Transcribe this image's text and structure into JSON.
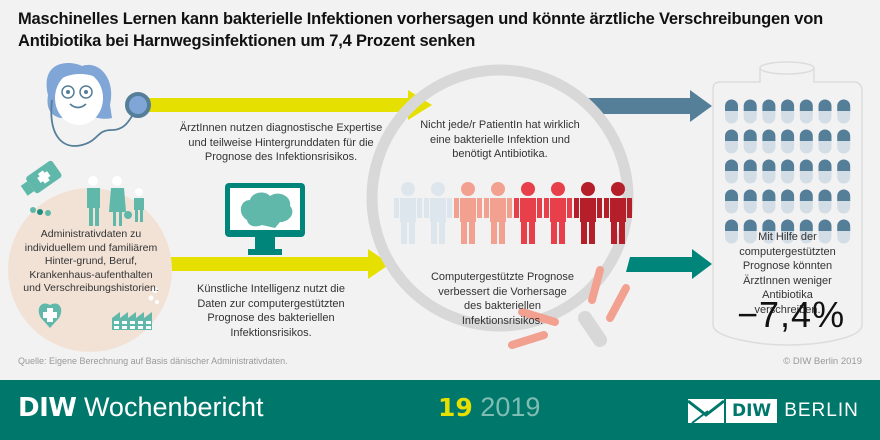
{
  "title": "Maschinelles Lernen kann bakterielle Infektionen vorhersagen und könnte ärztliche Verschreibungen von Antibiotika bei Harnwegsinfektionen um 7,4 Prozent senken",
  "steps": {
    "doctor": {
      "icon": "doctor-with-stethoscope-icon",
      "text": "ÄrztInnen nutzen diagnostische Expertise und teilweise Hintergrunddaten für die Prognose des Infektionsrisikos."
    },
    "admin_data": {
      "icon": "family-and-records-icon",
      "text": "Administrativdaten zu individuellem und familiärem Hinter-grund, Beruf, Krankenhaus-aufenthalten und Verschreibungshistorien."
    },
    "ai": {
      "icon": "brain-monitor-icon",
      "text": "Künstliche Intelligenz nutzt die Daten zur computergestützten Prognose des bakteriellen Infektionsrisikos."
    },
    "patients": {
      "icon": "magnifier-patients-icon",
      "text_top": "Nicht jede/r PatientIn hat wirklich eine bakterielle Infektion und benötigt Antibiotika.",
      "text_bottom": "Computergestützte Prognose verbessert die Vorhersage des bakteriellen Infektionsrisikos.",
      "figure_colors": [
        "#dde6ec",
        "#dde6ec",
        "#f2a090",
        "#f2a090",
        "#e8404a",
        "#e8404a",
        "#b51f2a",
        "#b51f2a"
      ]
    },
    "result": {
      "icon": "pill-bottle-icon",
      "text": "Mit Hilfe der computergestützten Prognose könnten ÄrztInnen weniger Antibiotika verschreiben.",
      "value": "−7,4%"
    }
  },
  "colors": {
    "yellow_arrow": "#e6e000",
    "blue_arrow": "#557e99",
    "teal_arrow": "#00857a",
    "footer_bg": "#00776b"
  },
  "source": "Quelle: Eigene Berechnung auf Basis dänischer Administrativdaten.",
  "copyright": "© DIW Berlin 2019",
  "footer": {
    "brand_bold": "DIW",
    "brand_rest": " Wochenbericht",
    "issue_number": "19",
    "issue_year": " 2019",
    "logo_box": "DIW",
    "logo_text": "BERLIN"
  }
}
